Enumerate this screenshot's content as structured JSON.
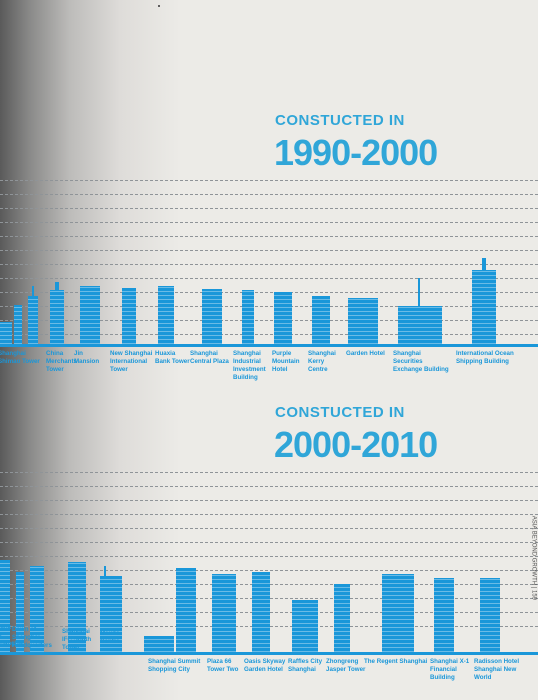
{
  "section1": {
    "label": "CONSTUCTED IN",
    "range": "1990-2000",
    "captions": [
      "Shanghai Shimao Tower",
      "China Merchants Tower",
      "Jin Mansion",
      "New Shanghai International Tower",
      "Huaxia Bank Tower",
      "Shanghai Central Plaza",
      "Shanghai Industrial Investment Building",
      "Purple Mountain Hotel",
      "Shanghai Kerry Centre",
      "Garden Hotel",
      "Shanghai Securities Exchange Building",
      "International Ocean Shipping Building"
    ]
  },
  "section2": {
    "label": "CONSTUCTED IN",
    "range": "2000-2010",
    "captions": [
      "Bank of Shanghai",
      "Dawn of Shanghai Headquarters",
      "Shanghai IFC South Tower",
      "Maxdo Centre",
      "Shanghai Summit Shopping City",
      "Plaza 66 Tower Two",
      "Oasis Skyway Garden Hotel",
      "Raffles City Shanghai",
      "Zhongreng Jasper Tower",
      "The Regent Shanghai",
      "Shanghai X-1 Financial Building",
      "Radisson Hotel Shanghai New World"
    ]
  },
  "side_note": "ASIA BEYOND GROWTH | 159",
  "colors": {
    "accent": "#1a97d9",
    "title": "#30a6d8",
    "paper": "#ecebe7"
  }
}
